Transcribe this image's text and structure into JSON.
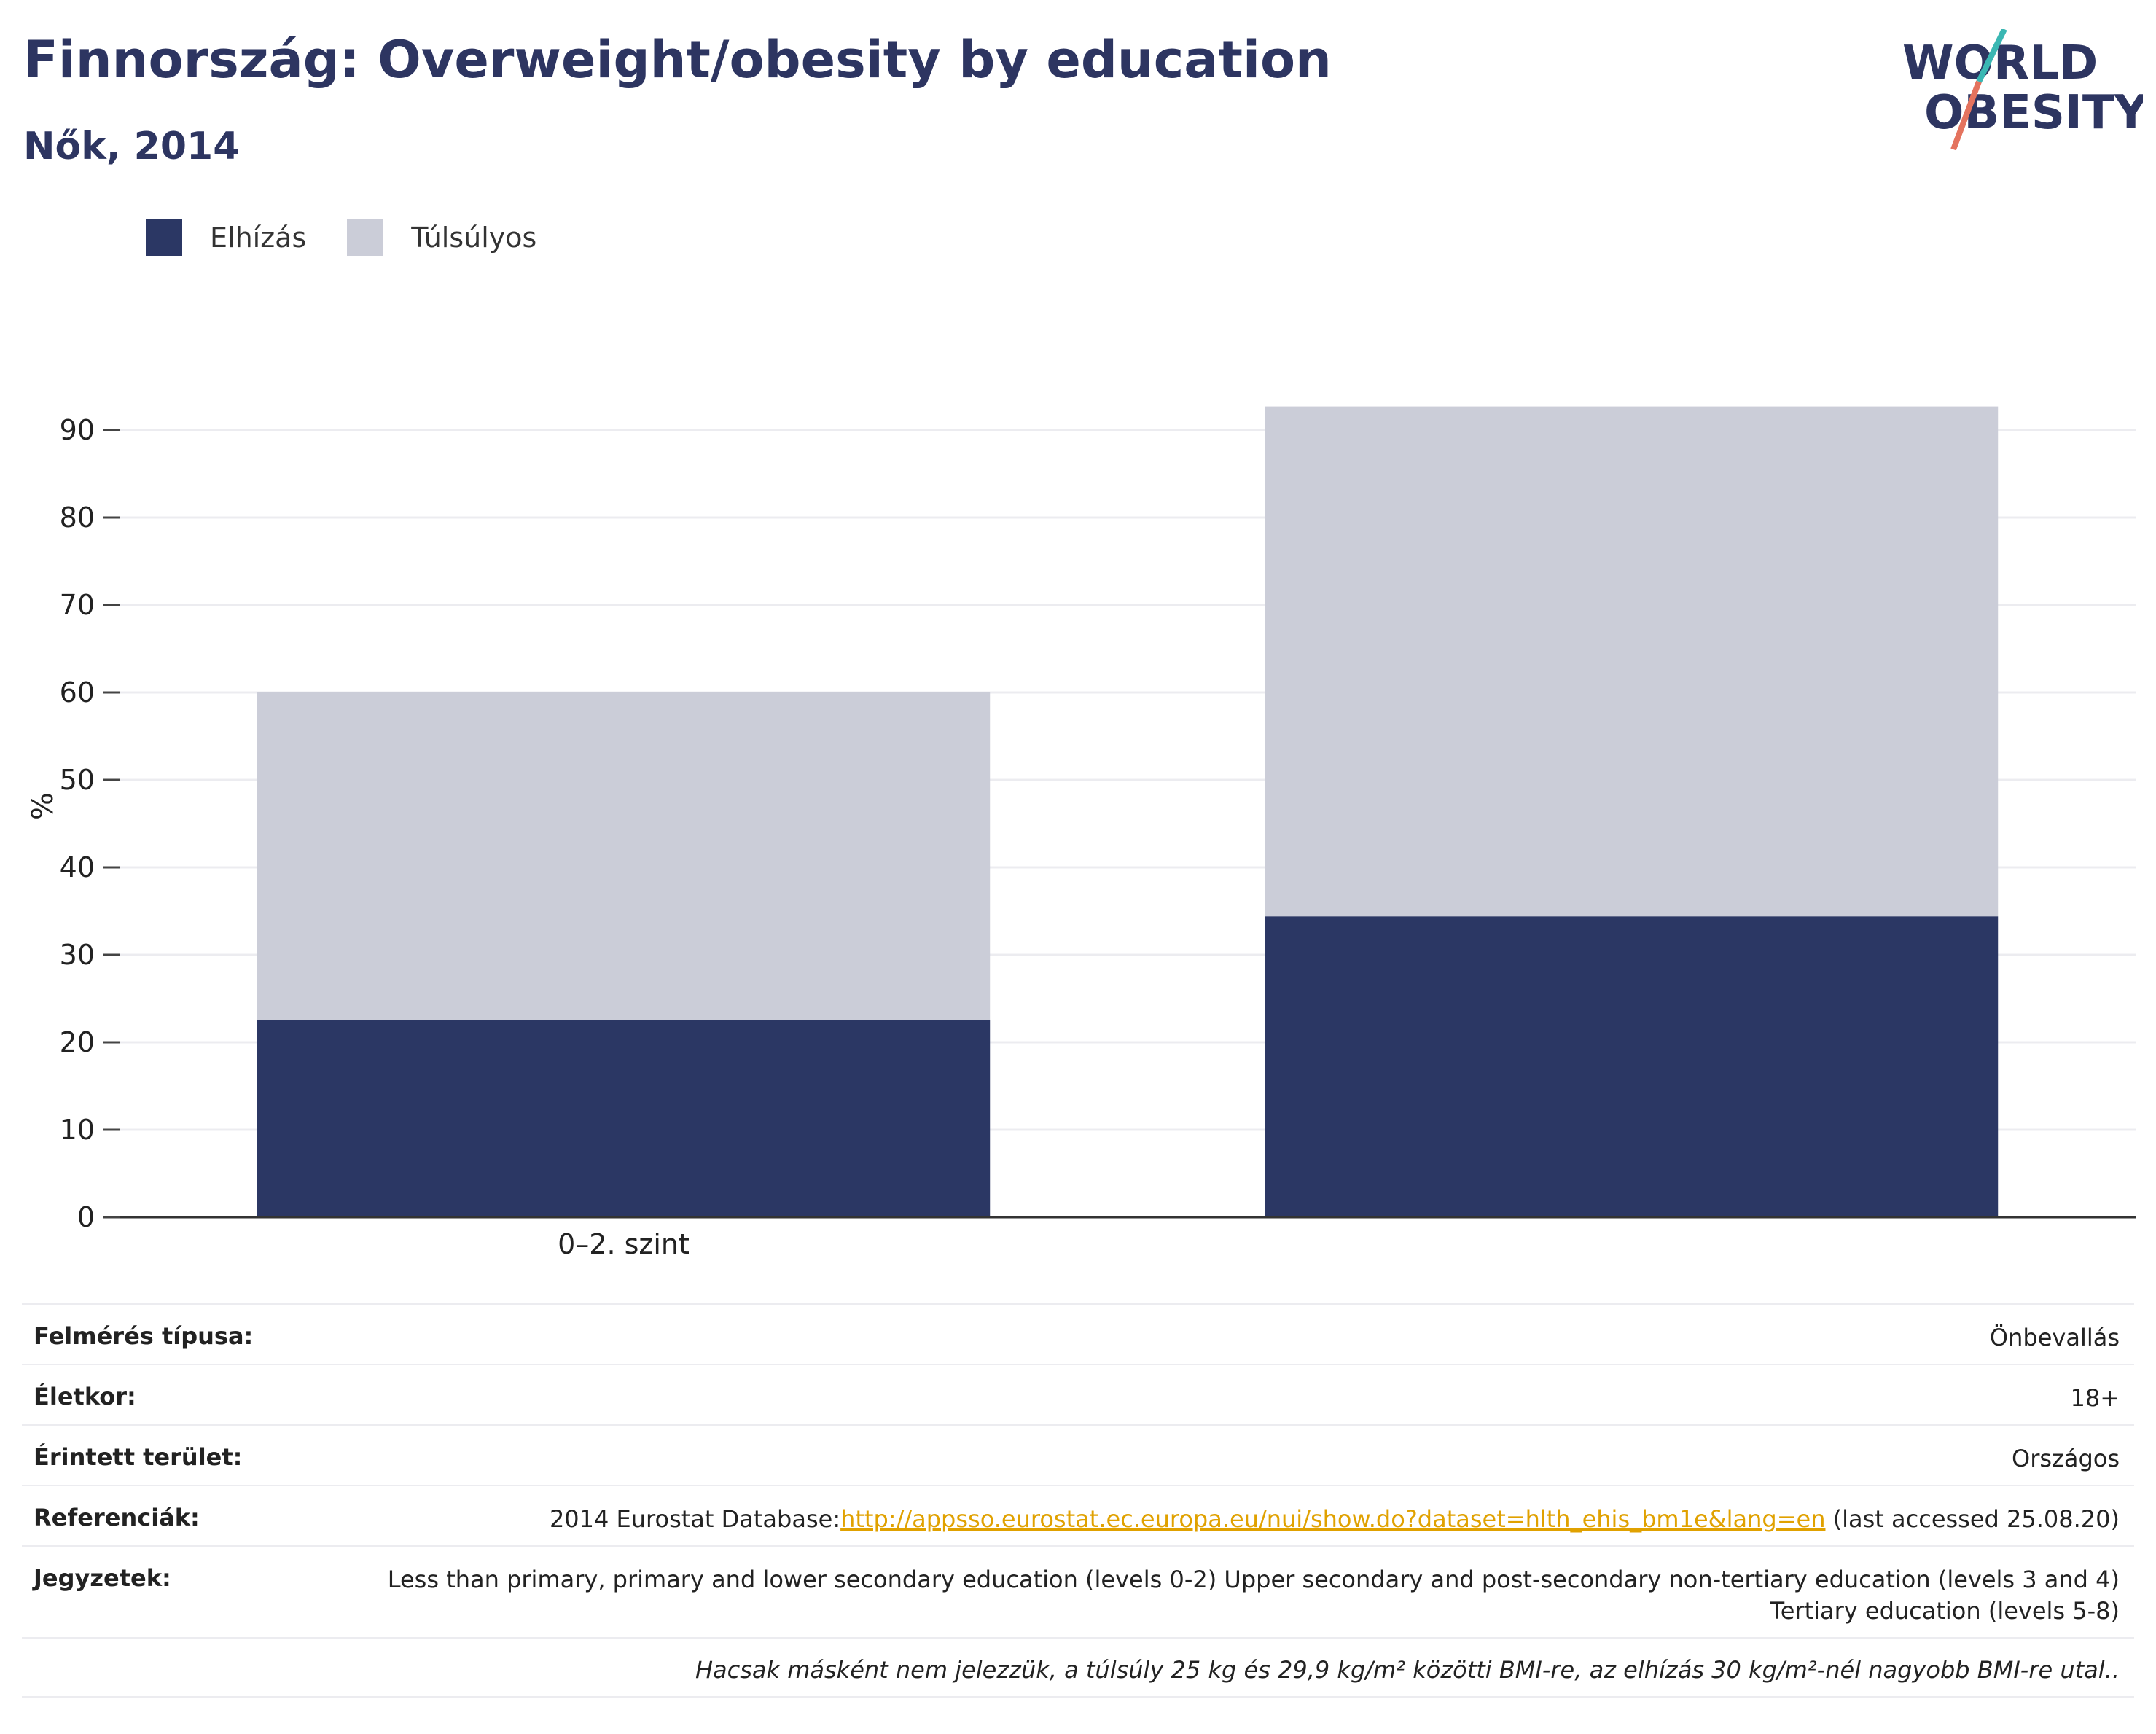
{
  "header": {
    "title": "Finnország: Overweight/obesity by education",
    "subtitle": "Nők, 2014"
  },
  "logo": {
    "line1": "WORLD",
    "line2": "OBESITY",
    "text_color": "#2d3561",
    "slash_top_color": "#3ab7b3",
    "slash_bottom_color": "#e4735e"
  },
  "legend": [
    {
      "label": "Elhízás",
      "color": "#2b3764"
    },
    {
      "label": "Túlsúlyos",
      "color": "#cbcdd8"
    }
  ],
  "chart_data": {
    "type": "bar",
    "stacked": true,
    "categories": [
      "0–2. szint",
      ""
    ],
    "series": [
      {
        "name": "Elhízás",
        "values": [
          22.5,
          34.4
        ],
        "color": "#2b3764"
      },
      {
        "name": "Túlsúlyos",
        "values": [
          37.5,
          58.3
        ],
        "color": "#cbcdd8"
      }
    ],
    "ylabel": "%",
    "ylim": [
      0,
      95
    ],
    "yticks": [
      0,
      10,
      20,
      30,
      40,
      50,
      60,
      70,
      80,
      90
    ],
    "grid": true
  },
  "info": {
    "survey_type": {
      "label": "Felmérés típusa:",
      "value": "Önbevallás"
    },
    "age": {
      "label": "Életkor:",
      "value": "18+"
    },
    "area": {
      "label": "Érintett terület:",
      "value": "Országos"
    },
    "references": {
      "label": "Referenciák:",
      "prefix": "2014 Eurostat Database:",
      "link": "http://appsso.eurostat.ec.europa.eu/nui/show.do?dataset=hlth_ehis_bm1e&lang=en",
      "suffix": " (last accessed 25.08.20)"
    },
    "notes": {
      "label": "Jegyzetek:",
      "value": "Less than primary, primary and lower secondary education (levels 0-2) Upper secondary and post-secondary non-tertiary education (levels 3 and 4) Tertiary education (levels 5-8)"
    },
    "footnote": "Hacsak másként nem jelezzük, a túlsúly 25 kg és 29,9 kg/m² közötti BMI-re, az elhízás 30 kg/m²-nél nagyobb BMI-re utal.."
  }
}
